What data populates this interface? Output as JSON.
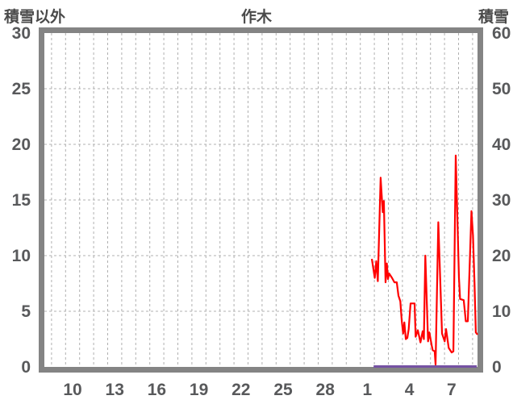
{
  "header": {
    "left_axis_title": "積雪以外",
    "title": "作木",
    "right_axis_title": "積雪"
  },
  "chart_data": {
    "type": "line",
    "title": "作木",
    "grid": true,
    "left_axis": {
      "title": "積雪以外",
      "min": 0,
      "max": 30,
      "ticks": [
        0,
        5,
        10,
        15,
        20,
        25,
        30
      ]
    },
    "right_axis": {
      "title": "積雪",
      "min": 0,
      "max": 60,
      "ticks": [
        0,
        10,
        20,
        30,
        40,
        50,
        60
      ]
    },
    "x_axis": {
      "unit": "day",
      "grid_start_day": 9,
      "grid_end_day": 39,
      "prev_month_days": 30,
      "ticks": [
        {
          "day": 10,
          "label": "10"
        },
        {
          "day": 13,
          "label": "13"
        },
        {
          "day": 16,
          "label": "16"
        },
        {
          "day": 19,
          "label": "19"
        },
        {
          "day": 22,
          "label": "22"
        },
        {
          "day": 25,
          "label": "25"
        },
        {
          "day": 28,
          "label": "28"
        },
        {
          "day": 31,
          "label": "1"
        },
        {
          "day": 34,
          "label": "4"
        },
        {
          "day": 37,
          "label": "7"
        }
      ]
    },
    "series": [
      {
        "name": "積雪以外",
        "axis": "left",
        "color": "#ff0000",
        "width": 2.2,
        "points": [
          [
            31.82,
            9.7
          ],
          [
            32.03,
            8.0
          ],
          [
            32.14,
            9.5
          ],
          [
            32.25,
            7.7
          ],
          [
            32.45,
            17.0
          ],
          [
            32.6,
            13.9
          ],
          [
            32.68,
            14.9
          ],
          [
            32.8,
            7.6
          ],
          [
            32.89,
            9.3
          ],
          [
            32.97,
            7.9
          ],
          [
            33.05,
            8.4
          ],
          [
            33.26,
            8.0
          ],
          [
            33.43,
            7.6
          ],
          [
            33.6,
            7.6
          ],
          [
            33.72,
            6.4
          ],
          [
            33.85,
            5.9
          ],
          [
            33.95,
            4.2
          ],
          [
            34.05,
            3.0
          ],
          [
            34.14,
            4.0
          ],
          [
            34.24,
            2.5
          ],
          [
            34.35,
            2.6
          ],
          [
            34.45,
            3.4
          ],
          [
            34.58,
            5.7
          ],
          [
            34.87,
            5.7
          ],
          [
            34.94,
            2.7
          ],
          [
            35.1,
            3.3
          ],
          [
            35.29,
            2.2
          ],
          [
            35.44,
            3.2
          ],
          [
            35.53,
            2.5
          ],
          [
            35.63,
            10.0
          ],
          [
            35.83,
            2.3
          ],
          [
            35.92,
            3.1
          ],
          [
            36.09,
            1.9
          ],
          [
            36.16,
            1.5
          ],
          [
            36.3,
            1.4
          ],
          [
            36.36,
            0.2
          ],
          [
            36.56,
            13.0
          ],
          [
            36.82,
            3.0
          ],
          [
            37.01,
            2.3
          ],
          [
            37.11,
            3.4
          ],
          [
            37.3,
            1.7
          ],
          [
            37.51,
            1.3
          ],
          [
            37.63,
            1.4
          ],
          [
            37.8,
            19.0
          ],
          [
            38.03,
            8.0
          ],
          [
            38.11,
            6.1
          ],
          [
            38.37,
            6.0
          ],
          [
            38.52,
            4.1
          ],
          [
            38.66,
            4.1
          ],
          [
            38.92,
            14.0
          ],
          [
            39.03,
            11.8
          ],
          [
            39.14,
            7.5
          ],
          [
            39.23,
            3.1
          ],
          [
            39.35,
            2.9
          ]
        ]
      },
      {
        "name": "積雪",
        "axis": "right",
        "color": "#7552a3",
        "width": 3,
        "points": [
          [
            31.95,
            0
          ],
          [
            39.3,
            0
          ]
        ]
      }
    ],
    "colors": {
      "grid": "#b0b0b0",
      "frame": "#848484",
      "tick_text": "#58595b",
      "title_text": "#4a4a4a"
    }
  }
}
